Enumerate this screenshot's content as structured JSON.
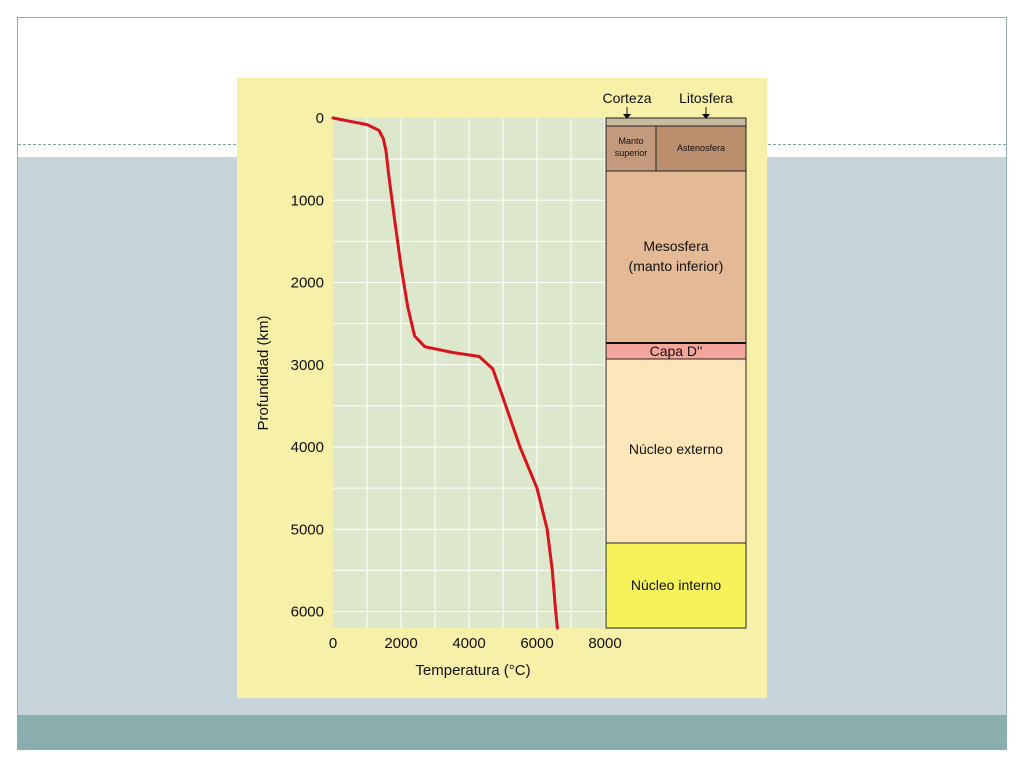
{
  "colors": {
    "plot_bg": "#dde7cc",
    "figure_bg": "#f7f0a8",
    "curve": "#d7141e"
  },
  "chart_data": {
    "type": "line",
    "xlabel": "Temperatura (°C)",
    "ylabel": "Profundidad (km)",
    "xlim": [
      0,
      8000
    ],
    "ylim": [
      6200,
      0
    ],
    "x_ticks": [
      "0",
      "2000",
      "4000",
      "6000",
      "8000"
    ],
    "y_ticks": [
      "0",
      "1000",
      "2000",
      "3000",
      "4000",
      "5000",
      "6000"
    ],
    "grid": true,
    "series": [
      {
        "points": [
          {
            "x": 0,
            "y": 0
          },
          {
            "x": 500,
            "y": 40
          },
          {
            "x": 1000,
            "y": 80
          },
          {
            "x": 1350,
            "y": 150
          },
          {
            "x": 1480,
            "y": 250
          },
          {
            "x": 1560,
            "y": 400
          },
          {
            "x": 1640,
            "y": 700
          },
          {
            "x": 1800,
            "y": 1200
          },
          {
            "x": 2000,
            "y": 1800
          },
          {
            "x": 2200,
            "y": 2300
          },
          {
            "x": 2400,
            "y": 2650
          },
          {
            "x": 2700,
            "y": 2780
          },
          {
            "x": 3500,
            "y": 2850
          },
          {
            "x": 4300,
            "y": 2900
          },
          {
            "x": 4700,
            "y": 3050
          },
          {
            "x": 5000,
            "y": 3400
          },
          {
            "x": 5500,
            "y": 4000
          },
          {
            "x": 6000,
            "y": 4500
          },
          {
            "x": 6300,
            "y": 5000
          },
          {
            "x": 6450,
            "y": 5500
          },
          {
            "x": 6550,
            "y": 6000
          },
          {
            "x": 6600,
            "y": 6200
          }
        ]
      }
    ]
  },
  "layers": {
    "top_labels": [
      "Corteza",
      "Litosfera"
    ],
    "manto_superior": [
      "Manto",
      "superior"
    ],
    "astenosfera": "Astenosfera",
    "mesosfera": [
      "Mesosfera",
      "(manto inferior)"
    ],
    "capa_d": "Capa D''",
    "nucleo_externo": "Núcleo externo",
    "nucleo_interno": "Núcleo interno",
    "colors": {
      "crust": "#c9bb9f",
      "manto_superior": "#c49a7d",
      "astenosfera": "#bb8e6d",
      "mesosfera": "#e4b996",
      "capa_d": "#f4a59c",
      "nucleo_externo": "#fde6ba",
      "nucleo_interno": "#f6f25a"
    }
  }
}
